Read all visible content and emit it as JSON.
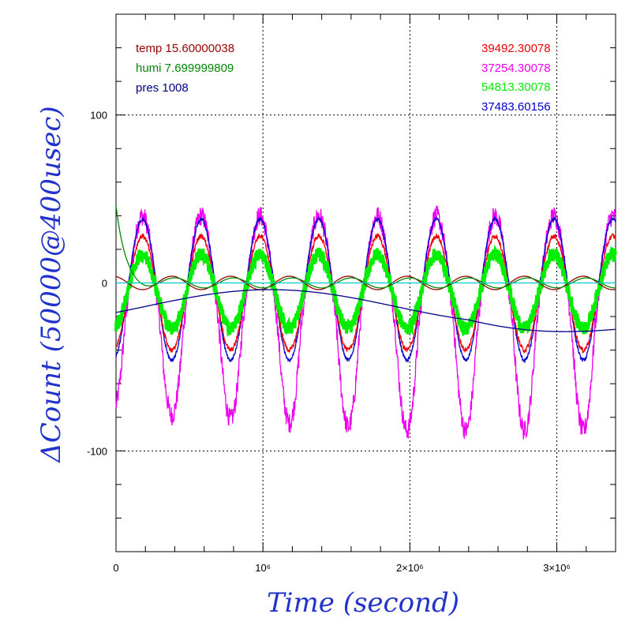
{
  "chart_data": {
    "type": "line",
    "xlabel": "Time (second)",
    "ylabel": "ΔCount (50000@400usec)",
    "xlim": [
      0,
      3400000
    ],
    "ylim": [
      -160,
      160
    ],
    "x_ticks": [
      {
        "value": 0,
        "label": "0"
      },
      {
        "value": 1000000,
        "label": "10⁶"
      },
      {
        "value": 2000000,
        "label": "2×10⁶"
      },
      {
        "value": 3000000,
        "label": "3×10⁶"
      }
    ],
    "y_ticks": [
      {
        "value": 100,
        "label": "100"
      },
      {
        "value": 0,
        "label": "0"
      },
      {
        "value": -100,
        "label": "-100"
      }
    ],
    "grid": true,
    "legend_left": [
      {
        "text": "temp 15.60000038",
        "color": "#990000"
      },
      {
        "text": "humi 7.699999809",
        "color": "#008800"
      },
      {
        "text": "pres 1008",
        "color": "#000088"
      }
    ],
    "legend_right": [
      {
        "text": "39492.30078",
        "color": "#ee0000"
      },
      {
        "text": "37254.30078",
        "color": "#ee00ee"
      },
      {
        "text": "54813.30078",
        "color": "#00ee00"
      },
      {
        "text": "37483.60156",
        "color": "#0000cc"
      }
    ],
    "series": [
      {
        "color": "#ee00ee",
        "period": 400000,
        "phase": 180000,
        "offset": -10,
        "amp": 50,
        "min_shape": "drop",
        "noise": 6
      },
      {
        "color": "#0000cc",
        "period": 400000,
        "phase": 180000,
        "offset": -4,
        "amp": 42,
        "noise": 1
      },
      {
        "color": "#ee0000",
        "period": 400000,
        "phase": 180000,
        "offset": -6,
        "amp": 34,
        "noise": 1.5
      },
      {
        "color": "#00ee00",
        "period": 400000,
        "phase": 180000,
        "offset": -5,
        "amp": 22,
        "noise": 4,
        "width": 4
      },
      {
        "color": "#990000",
        "period": 400000,
        "phase": 380000,
        "offset": 0,
        "amp": 4,
        "noise": 0
      },
      {
        "color": "#008800",
        "period": 400000,
        "phase": 0,
        "offset": 0,
        "amp": 3,
        "noise": 0,
        "decay_start": 45
      },
      {
        "color": "#000088",
        "type": "drift",
        "noise": 0
      },
      {
        "color": "#00cccc",
        "type": "flat",
        "value": 0,
        "noise": 0
      }
    ]
  }
}
